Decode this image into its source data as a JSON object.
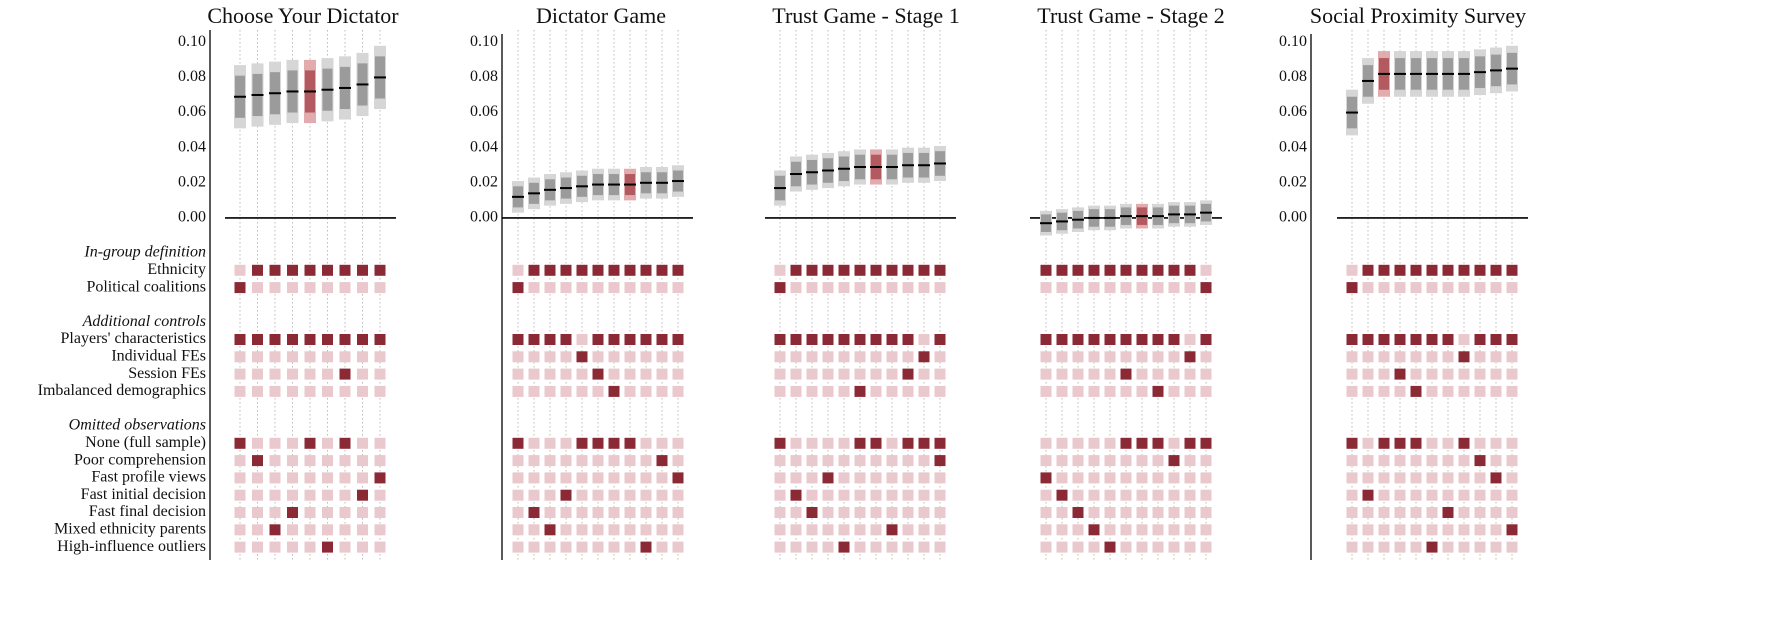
{
  "colors": {
    "on": "#8b2a35",
    "off": "#e9c9cd",
    "ci_outer": "#d6d6d6",
    "ci_inner": "#9b9b9b",
    "hl_outer": "#e2abae",
    "hl_inner": "#b35a60",
    "estimate": "#000000"
  },
  "chart_data": [
    {
      "type": "spec",
      "title": "Choose Your Dictator",
      "row_groups": [
        {
          "title": "In-group definition",
          "labels": [
            "Ethnicity",
            "Political coalitions"
          ]
        },
        {
          "title": "Additional controls",
          "labels": [
            "Players' characteristics",
            "Individual FEs",
            "Session FEs",
            "Imbalanced demographics"
          ]
        },
        {
          "title": "Omitted observations",
          "labels": [
            "None (full sample)",
            "Poor comprehension",
            "Fast profile views",
            "Fast initial decision",
            "Fast final decision",
            "Mixed ethnicity parents",
            "High-influence outliers"
          ]
        }
      ],
      "ylim": [
        -0.012,
        0.107
      ],
      "yticks": [
        {
          "value": 0,
          "label": "0.00"
        },
        0.02,
        0.04,
        0.06,
        0.08,
        {
          "value": 0.1,
          "label": "0.10"
        }
      ],
      "highlight": 4,
      "estimates": [
        0.069,
        0.07,
        0.071,
        0.072,
        0.072,
        0.073,
        0.074,
        0.076,
        0.08
      ],
      "ci_outer": [
        [
          0.051,
          0.087
        ],
        [
          0.052,
          0.088
        ],
        [
          0.053,
          0.089
        ],
        [
          0.054,
          0.09
        ],
        [
          0.054,
          0.09
        ],
        [
          0.055,
          0.091
        ],
        [
          0.056,
          0.092
        ],
        [
          0.058,
          0.094
        ],
        [
          0.062,
          0.098
        ]
      ],
      "ci_inner": [
        [
          0.057,
          0.081
        ],
        [
          0.058,
          0.082
        ],
        [
          0.059,
          0.083
        ],
        [
          0.06,
          0.084
        ],
        [
          0.06,
          0.084
        ],
        [
          0.061,
          0.085
        ],
        [
          0.062,
          0.086
        ],
        [
          0.064,
          0.088
        ],
        [
          0.068,
          0.092
        ]
      ],
      "indicators": [
        [
          0,
          1,
          1,
          1,
          1,
          1,
          1,
          1,
          1
        ],
        [
          1,
          0,
          0,
          0,
          0,
          0,
          0,
          0,
          0
        ],
        [
          1,
          1,
          1,
          1,
          1,
          1,
          1,
          1,
          1
        ],
        [
          0,
          0,
          0,
          0,
          0,
          0,
          0,
          0,
          0
        ],
        [
          0,
          0,
          0,
          0,
          0,
          0,
          1,
          0,
          0
        ],
        [
          0,
          0,
          0,
          0,
          0,
          0,
          0,
          0,
          0
        ],
        [
          1,
          0,
          0,
          0,
          1,
          0,
          1,
          0,
          0
        ],
        [
          0,
          1,
          0,
          0,
          0,
          0,
          0,
          0,
          0
        ],
        [
          0,
          0,
          0,
          0,
          0,
          0,
          0,
          0,
          1
        ],
        [
          0,
          0,
          0,
          0,
          0,
          0,
          0,
          1,
          0
        ],
        [
          0,
          0,
          0,
          1,
          0,
          0,
          0,
          0,
          0
        ],
        [
          0,
          0,
          1,
          0,
          0,
          0,
          0,
          0,
          0
        ],
        [
          0,
          0,
          0,
          0,
          0,
          1,
          0,
          0,
          0
        ]
      ]
    },
    {
      "type": "spec",
      "title": "Dictator Game",
      "ylim": [
        -0.012,
        0.107
      ],
      "yticks": [
        {
          "value": 0,
          "label": "0.00"
        },
        0.02,
        0.04,
        0.06,
        0.08,
        {
          "value": 0.1,
          "label": "0.10"
        }
      ],
      "highlight": 7,
      "estimates": [
        0.012,
        0.014,
        0.016,
        0.017,
        0.018,
        0.019,
        0.019,
        0.019,
        0.02,
        0.02,
        0.021
      ],
      "ci_outer": [
        [
          0.003,
          0.021
        ],
        [
          0.005,
          0.023
        ],
        [
          0.007,
          0.025
        ],
        [
          0.008,
          0.026
        ],
        [
          0.009,
          0.027
        ],
        [
          0.01,
          0.028
        ],
        [
          0.01,
          0.028
        ],
        [
          0.01,
          0.028
        ],
        [
          0.011,
          0.029
        ],
        [
          0.011,
          0.029
        ],
        [
          0.012,
          0.03
        ]
      ],
      "ci_inner": [
        [
          0.006,
          0.018
        ],
        [
          0.008,
          0.02
        ],
        [
          0.01,
          0.022
        ],
        [
          0.011,
          0.023
        ],
        [
          0.012,
          0.024
        ],
        [
          0.013,
          0.025
        ],
        [
          0.013,
          0.025
        ],
        [
          0.013,
          0.025
        ],
        [
          0.014,
          0.026
        ],
        [
          0.014,
          0.026
        ],
        [
          0.015,
          0.027
        ]
      ],
      "indicators": [
        [
          0,
          1,
          1,
          1,
          1,
          1,
          1,
          1,
          1,
          1,
          1
        ],
        [
          1,
          0,
          0,
          0,
          0,
          0,
          0,
          0,
          0,
          0,
          0
        ],
        [
          1,
          1,
          1,
          1,
          0,
          1,
          1,
          1,
          1,
          1,
          1
        ],
        [
          0,
          0,
          0,
          0,
          1,
          0,
          0,
          0,
          0,
          0,
          0
        ],
        [
          0,
          0,
          0,
          0,
          0,
          1,
          0,
          0,
          0,
          0,
          0
        ],
        [
          0,
          0,
          0,
          0,
          0,
          0,
          1,
          0,
          0,
          0,
          0
        ],
        [
          1,
          0,
          0,
          0,
          1,
          1,
          1,
          1,
          0,
          0,
          0
        ],
        [
          0,
          0,
          0,
          0,
          0,
          0,
          0,
          0,
          0,
          1,
          0
        ],
        [
          0,
          0,
          0,
          0,
          0,
          0,
          0,
          0,
          0,
          0,
          1
        ],
        [
          0,
          0,
          0,
          1,
          0,
          0,
          0,
          0,
          0,
          0,
          0
        ],
        [
          0,
          1,
          0,
          0,
          0,
          0,
          0,
          0,
          0,
          0,
          0
        ],
        [
          0,
          0,
          1,
          0,
          0,
          0,
          0,
          0,
          0,
          0,
          0
        ],
        [
          0,
          0,
          0,
          0,
          0,
          0,
          0,
          0,
          1,
          0,
          0
        ]
      ]
    },
    {
      "type": "spec",
      "title": "Trust Game - Stage 1",
      "ylim": [
        -0.012,
        0.107
      ],
      "highlight": 6,
      "estimates": [
        0.017,
        0.025,
        0.026,
        0.027,
        0.028,
        0.029,
        0.029,
        0.029,
        0.03,
        0.03,
        0.031
      ],
      "ci_outer": [
        [
          0.007,
          0.027
        ],
        [
          0.015,
          0.035
        ],
        [
          0.016,
          0.036
        ],
        [
          0.017,
          0.037
        ],
        [
          0.018,
          0.038
        ],
        [
          0.019,
          0.039
        ],
        [
          0.019,
          0.039
        ],
        [
          0.019,
          0.039
        ],
        [
          0.02,
          0.04
        ],
        [
          0.02,
          0.04
        ],
        [
          0.021,
          0.041
        ]
      ],
      "ci_inner": [
        [
          0.01,
          0.024
        ],
        [
          0.018,
          0.032
        ],
        [
          0.019,
          0.033
        ],
        [
          0.02,
          0.034
        ],
        [
          0.021,
          0.035
        ],
        [
          0.022,
          0.036
        ],
        [
          0.022,
          0.036
        ],
        [
          0.022,
          0.036
        ],
        [
          0.023,
          0.037
        ],
        [
          0.023,
          0.037
        ],
        [
          0.024,
          0.038
        ]
      ],
      "indicators": [
        [
          0,
          1,
          1,
          1,
          1,
          1,
          1,
          1,
          1,
          1,
          1
        ],
        [
          1,
          0,
          0,
          0,
          0,
          0,
          0,
          0,
          0,
          0,
          0
        ],
        [
          1,
          1,
          1,
          1,
          1,
          1,
          1,
          1,
          1,
          0,
          1
        ],
        [
          0,
          0,
          0,
          0,
          0,
          0,
          0,
          0,
          0,
          1,
          0
        ],
        [
          0,
          0,
          0,
          0,
          0,
          0,
          0,
          0,
          1,
          0,
          0
        ],
        [
          0,
          0,
          0,
          0,
          0,
          1,
          0,
          0,
          0,
          0,
          0
        ],
        [
          1,
          0,
          0,
          0,
          0,
          1,
          1,
          0,
          1,
          1,
          1
        ],
        [
          0,
          0,
          0,
          0,
          0,
          0,
          0,
          0,
          0,
          0,
          1
        ],
        [
          0,
          0,
          0,
          1,
          0,
          0,
          0,
          0,
          0,
          0,
          0
        ],
        [
          0,
          1,
          0,
          0,
          0,
          0,
          0,
          0,
          0,
          0,
          0
        ],
        [
          0,
          0,
          1,
          0,
          0,
          0,
          0,
          0,
          0,
          0,
          0
        ],
        [
          0,
          0,
          0,
          0,
          0,
          0,
          0,
          1,
          0,
          0,
          0
        ],
        [
          0,
          0,
          0,
          0,
          1,
          0,
          0,
          0,
          0,
          0,
          0
        ]
      ]
    },
    {
      "type": "spec",
      "title": "Trust Game - Stage 2",
      "ylim": [
        -0.012,
        0.107
      ],
      "highlight": 6,
      "estimates": [
        -0.003,
        -0.002,
        -0.001,
        0.0,
        0.0,
        0.001,
        0.001,
        0.001,
        0.002,
        0.002,
        0.003
      ],
      "ci_outer": [
        [
          -0.01,
          0.004
        ],
        [
          -0.009,
          0.005
        ],
        [
          -0.008,
          0.006
        ],
        [
          -0.007,
          0.007
        ],
        [
          -0.007,
          0.007
        ],
        [
          -0.006,
          0.008
        ],
        [
          -0.006,
          0.008
        ],
        [
          -0.006,
          0.008
        ],
        [
          -0.005,
          0.009
        ],
        [
          -0.005,
          0.009
        ],
        [
          -0.004,
          0.01
        ]
      ],
      "ci_inner": [
        [
          -0.008,
          0.002
        ],
        [
          -0.007,
          0.003
        ],
        [
          -0.006,
          0.004
        ],
        [
          -0.005,
          0.005
        ],
        [
          -0.005,
          0.005
        ],
        [
          -0.004,
          0.006
        ],
        [
          -0.004,
          0.006
        ],
        [
          -0.004,
          0.006
        ],
        [
          -0.003,
          0.007
        ],
        [
          -0.003,
          0.007
        ],
        [
          -0.002,
          0.008
        ]
      ],
      "indicators": [
        [
          1,
          1,
          1,
          1,
          1,
          1,
          1,
          1,
          1,
          1,
          0
        ],
        [
          0,
          0,
          0,
          0,
          0,
          0,
          0,
          0,
          0,
          0,
          1
        ],
        [
          1,
          1,
          1,
          1,
          1,
          1,
          1,
          1,
          1,
          0,
          1
        ],
        [
          0,
          0,
          0,
          0,
          0,
          0,
          0,
          0,
          0,
          1,
          0
        ],
        [
          0,
          0,
          0,
          0,
          0,
          1,
          0,
          0,
          0,
          0,
          0
        ],
        [
          0,
          0,
          0,
          0,
          0,
          0,
          0,
          1,
          0,
          0,
          0
        ],
        [
          0,
          0,
          0,
          0,
          0,
          1,
          1,
          1,
          0,
          1,
          1
        ],
        [
          0,
          0,
          0,
          0,
          0,
          0,
          0,
          0,
          1,
          0,
          0
        ],
        [
          1,
          0,
          0,
          0,
          0,
          0,
          0,
          0,
          0,
          0,
          0
        ],
        [
          0,
          1,
          0,
          0,
          0,
          0,
          0,
          0,
          0,
          0,
          0
        ],
        [
          0,
          0,
          1,
          0,
          0,
          0,
          0,
          0,
          0,
          0,
          0
        ],
        [
          0,
          0,
          0,
          1,
          0,
          0,
          0,
          0,
          0,
          0,
          0
        ],
        [
          0,
          0,
          0,
          0,
          1,
          0,
          0,
          0,
          0,
          0,
          0
        ]
      ]
    },
    {
      "type": "spec",
      "title": "Social Proximity Survey",
      "ylim": [
        -0.012,
        0.107
      ],
      "yticks": [
        {
          "value": 0,
          "label": "0.00"
        },
        0.02,
        0.04,
        0.06,
        0.08,
        {
          "value": 0.1,
          "label": "0.10"
        }
      ],
      "highlight": 2,
      "estimates": [
        0.06,
        0.078,
        0.082,
        0.082,
        0.082,
        0.082,
        0.082,
        0.082,
        0.083,
        0.084,
        0.085
      ],
      "ci_outer": [
        [
          0.047,
          0.073
        ],
        [
          0.065,
          0.091
        ],
        [
          0.069,
          0.095
        ],
        [
          0.069,
          0.095
        ],
        [
          0.069,
          0.095
        ],
        [
          0.069,
          0.095
        ],
        [
          0.069,
          0.095
        ],
        [
          0.069,
          0.095
        ],
        [
          0.07,
          0.096
        ],
        [
          0.071,
          0.097
        ],
        [
          0.072,
          0.098
        ]
      ],
      "ci_inner": [
        [
          0.051,
          0.069
        ],
        [
          0.069,
          0.087
        ],
        [
          0.073,
          0.091
        ],
        [
          0.073,
          0.091
        ],
        [
          0.073,
          0.091
        ],
        [
          0.073,
          0.091
        ],
        [
          0.073,
          0.091
        ],
        [
          0.073,
          0.091
        ],
        [
          0.074,
          0.092
        ],
        [
          0.075,
          0.093
        ],
        [
          0.076,
          0.094
        ]
      ],
      "indicators": [
        [
          0,
          1,
          1,
          1,
          1,
          1,
          1,
          1,
          1,
          1,
          1
        ],
        [
          1,
          0,
          0,
          0,
          0,
          0,
          0,
          0,
          0,
          0,
          0
        ],
        [
          1,
          1,
          1,
          1,
          1,
          1,
          1,
          0,
          1,
          1,
          1
        ],
        [
          0,
          0,
          0,
          0,
          0,
          0,
          0,
          1,
          0,
          0,
          0
        ],
        [
          0,
          0,
          0,
          1,
          0,
          0,
          0,
          0,
          0,
          0,
          0
        ],
        [
          0,
          0,
          0,
          0,
          1,
          0,
          0,
          0,
          0,
          0,
          0
        ],
        [
          1,
          0,
          1,
          1,
          1,
          0,
          0,
          1,
          0,
          0,
          0
        ],
        [
          0,
          0,
          0,
          0,
          0,
          0,
          0,
          0,
          1,
          0,
          0
        ],
        [
          0,
          0,
          0,
          0,
          0,
          0,
          0,
          0,
          0,
          1,
          0
        ],
        [
          0,
          1,
          0,
          0,
          0,
          0,
          0,
          0,
          0,
          0,
          0
        ],
        [
          0,
          0,
          0,
          0,
          0,
          0,
          1,
          0,
          0,
          0,
          0
        ],
        [
          0,
          0,
          0,
          0,
          0,
          0,
          0,
          0,
          0,
          0,
          1
        ],
        [
          0,
          0,
          0,
          0,
          0,
          1,
          0,
          0,
          0,
          0,
          0
        ]
      ]
    }
  ]
}
